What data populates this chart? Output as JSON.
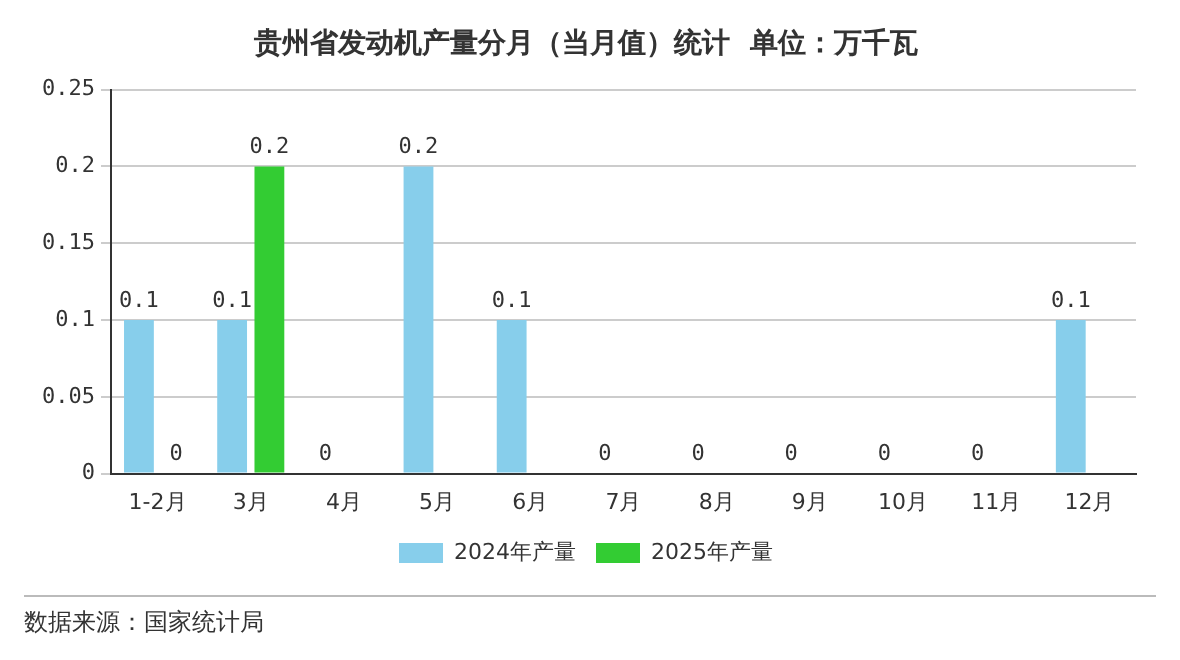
{
  "chart_data": {
    "type": "bar",
    "title": "贵州省发动机产量分月（当月值）统计  单位：万千瓦",
    "categories": [
      "1-2月",
      "3月",
      "4月",
      "5月",
      "6月",
      "7月",
      "8月",
      "9月",
      "10月",
      "11月",
      "12月"
    ],
    "series": [
      {
        "name": "2024年产量",
        "color": "#87ceeb",
        "values": [
          0.1,
          0.1,
          0,
          0.2,
          0.1,
          0,
          0,
          0,
          0,
          0,
          0.1
        ]
      },
      {
        "name": "2025年产量",
        "color": "#33cc33",
        "values": [
          0,
          0.2,
          null,
          null,
          null,
          null,
          null,
          null,
          null,
          null,
          null
        ]
      }
    ],
    "ylim": [
      0,
      0.25
    ],
    "yticks": [
      0,
      0.05,
      0.1,
      0.15,
      0.2,
      0.25
    ],
    "grid": "y",
    "legend": "bottom",
    "data_labels": true,
    "annotations": [
      "数据来源：国家统计局"
    ]
  }
}
